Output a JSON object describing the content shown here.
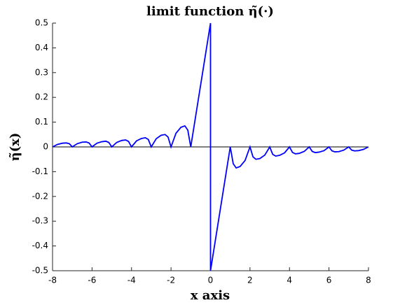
{
  "chart_data": {
    "type": "line",
    "title": "limit function η̃(·)",
    "xlabel": "x axis",
    "ylabel": "η̃(x)",
    "x": [
      -8,
      -7.75,
      -7.5,
      -7.3,
      -7.15,
      -7,
      -6.75,
      -6.5,
      -6.3,
      -6.15,
      -6,
      -5.75,
      -5.5,
      -5.3,
      -5.15,
      -5,
      -4.75,
      -4.5,
      -4.3,
      -4.15,
      -4,
      -3.75,
      -3.5,
      -3.3,
      -3.15,
      -3,
      -2.75,
      -2.5,
      -2.3,
      -2.15,
      -2,
      -1.75,
      -1.5,
      -1.3,
      -1.15,
      -1,
      0,
      0,
      1,
      1.15,
      1.3,
      1.5,
      1.75,
      2,
      2.15,
      2.3,
      2.5,
      2.75,
      3,
      3.15,
      3.3,
      3.5,
      3.75,
      4,
      4.15,
      4.3,
      4.5,
      4.75,
      5,
      5.15,
      5.3,
      5.5,
      5.75,
      6,
      6.15,
      6.3,
      6.5,
      6.75,
      7,
      7.15,
      7.3,
      7.5,
      7.75,
      8
    ],
    "values": [
      0,
      0.01,
      0.015,
      0.016,
      0.013,
      0,
      0.013,
      0.019,
      0.02,
      0.016,
      0,
      0.015,
      0.021,
      0.023,
      0.018,
      0,
      0.018,
      0.026,
      0.028,
      0.022,
      0,
      0.024,
      0.034,
      0.037,
      0.03,
      0,
      0.033,
      0.047,
      0.05,
      0.04,
      0,
      0.055,
      0.079,
      0.085,
      0.068,
      0,
      0.5,
      -0.5,
      0,
      -0.068,
      -0.085,
      -0.079,
      -0.055,
      0,
      -0.04,
      -0.05,
      -0.047,
      -0.033,
      0,
      -0.03,
      -0.037,
      -0.034,
      -0.024,
      0,
      -0.022,
      -0.028,
      -0.026,
      -0.018,
      0,
      -0.018,
      -0.023,
      -0.021,
      -0.015,
      0,
      -0.016,
      -0.02,
      -0.019,
      -0.013,
      0,
      -0.013,
      -0.016,
      -0.015,
      -0.01,
      0
    ],
    "color": "#0000ff",
    "reference_line_y": 0,
    "xlim": [
      -8,
      8
    ],
    "xticks": [
      -8,
      -6,
      -4,
      -2,
      0,
      2,
      4,
      6,
      8
    ],
    "ylim": [
      -0.5,
      0.5
    ],
    "yticks": [
      -0.5,
      -0.4,
      -0.3,
      -0.2,
      -0.1,
      0,
      0.1,
      0.2,
      0.3,
      0.4,
      0.5
    ]
  }
}
